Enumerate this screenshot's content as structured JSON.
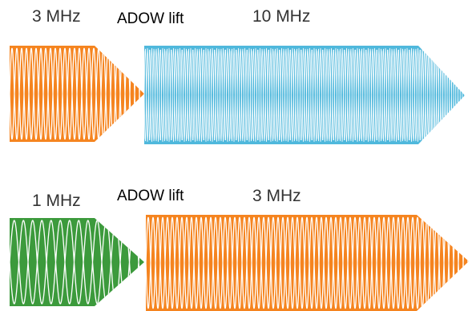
{
  "rows": [
    {
      "left_label": "3 MHz",
      "middle_label": "ADOW lift",
      "right_label": "10 MHz",
      "left_color": "#f5841f",
      "right_color": "#4fb8dc",
      "left_waveform": "orange-sine-waveform",
      "right_waveform": "blue-sine-waveform"
    },
    {
      "left_label": "1 MHz",
      "middle_label": "ADOW lift",
      "right_label": "3 MHz",
      "left_color": "#3c9a3c",
      "right_color": "#f5841f",
      "left_waveform": "green-sine-waveform",
      "right_waveform": "orange-sine-waveform"
    }
  ]
}
